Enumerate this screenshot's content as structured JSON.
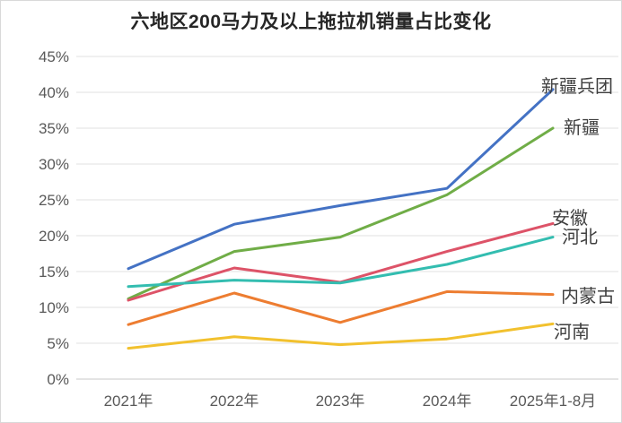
{
  "chart_data": {
    "type": "line",
    "title": "六地区200马力及以上拖拉机销量占比变化",
    "categories": [
      "2021年",
      "2022年",
      "2023年",
      "2024年",
      "2025年1-8月"
    ],
    "series": [
      {
        "name": "新疆兵团",
        "color": "#4472C4",
        "values": [
          15.4,
          21.6,
          24.2,
          26.6,
          40.4
        ]
      },
      {
        "name": "新疆",
        "color": "#70AD47",
        "values": [
          11.2,
          17.8,
          19.8,
          25.7,
          35.0
        ]
      },
      {
        "name": "安徽",
        "color": "#DD5368",
        "values": [
          11.0,
          15.5,
          13.5,
          17.8,
          21.7
        ]
      },
      {
        "name": "河北",
        "color": "#33BDB0",
        "values": [
          12.9,
          13.8,
          13.4,
          16.0,
          19.8
        ]
      },
      {
        "name": "内蒙古",
        "color": "#ED7D31",
        "values": [
          7.6,
          12.0,
          7.9,
          12.2,
          11.8
        ]
      },
      {
        "name": "河南",
        "color": "#F2C12E",
        "values": [
          4.3,
          5.9,
          4.8,
          5.6,
          7.7
        ]
      }
    ],
    "xlabel": "",
    "ylabel": "",
    "ylim": [
      0,
      45
    ],
    "ytick_step": 5,
    "y_tick_labels": [
      "0%",
      "5%",
      "10%",
      "15%",
      "20%",
      "25%",
      "30%",
      "35%",
      "40%",
      "45%"
    ],
    "grid": "horizontal",
    "legend_position": "labels-at-line-ends",
    "colors": {
      "grid": "#e2e2e2",
      "axis_text": "#595959",
      "series_label_text": "#3f3f3f",
      "title_text": "#262626",
      "background": "#ffffff"
    }
  }
}
